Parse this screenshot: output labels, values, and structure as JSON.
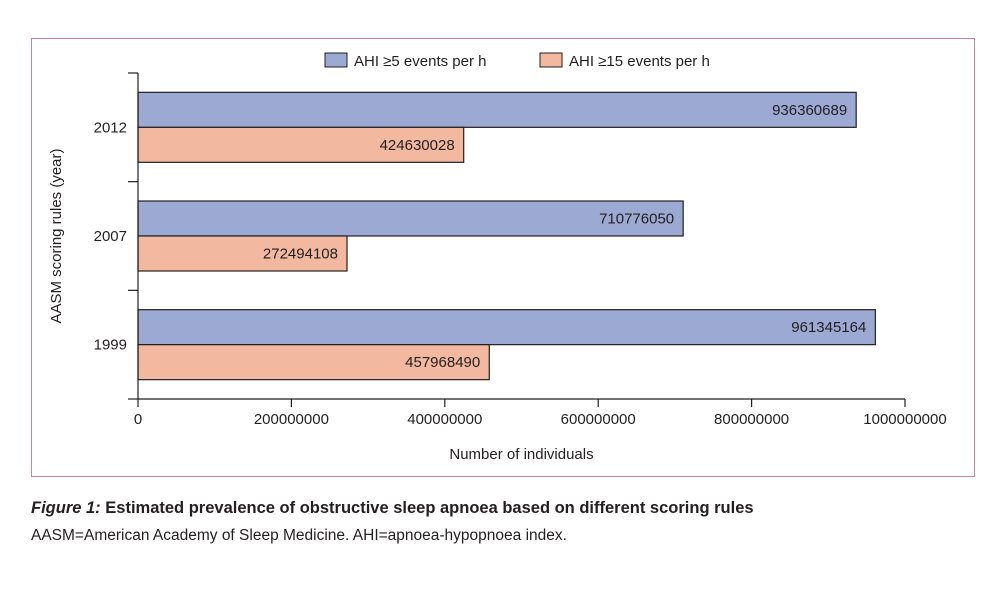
{
  "chart_data": {
    "type": "bar",
    "orientation": "horizontal",
    "categories": [
      "2012",
      "2007",
      "1999"
    ],
    "series": [
      {
        "name": "AHI ≥5 events per h",
        "color": "#9ba9d3",
        "values": [
          936360689,
          710776050,
          961345164
        ]
      },
      {
        "name": "AHI ≥15 events per h",
        "color": "#f2b8a0",
        "values": [
          424630028,
          272494108,
          457968490
        ]
      }
    ],
    "bar_labels": [
      [
        "936360689",
        "710776050",
        "961345164"
      ],
      [
        "424630028",
        "272494108",
        "457968490"
      ]
    ],
    "xlabel": "Number of individuals",
    "ylabel": "AASM scoring rules (year)",
    "xlim": [
      0,
      1000000000
    ],
    "xticks": [
      0,
      200000000,
      400000000,
      600000000,
      800000000,
      1000000000
    ],
    "xtick_labels": [
      "0",
      "200000000",
      "400000000",
      "600000000",
      "800000000",
      "1000000000"
    ],
    "legend_position": "top-center",
    "grid": false
  },
  "caption": {
    "figure_label": "Figure 1:",
    "title": "Estimated prevalence of obstructive sleep apnoea based on different scoring rules",
    "note": "AASM=American Academy of Sleep Medicine. AHI=apnoea-hypopnoea index."
  }
}
